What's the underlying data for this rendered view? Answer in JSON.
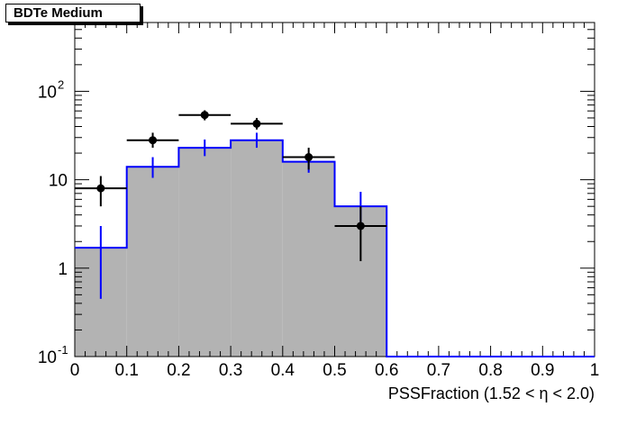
{
  "chart_data": {
    "type": "histogram",
    "title": "BDTe Medium",
    "xlabel": "PSSFraction (1.52 <  η < 2.0)",
    "ylabel": "",
    "yscale": "log",
    "xlim": [
      0,
      1
    ],
    "ylim": [
      0.1,
      600
    ],
    "bin_edges": [
      0,
      0.1,
      0.2,
      0.3,
      0.4,
      0.5,
      0.6,
      0.7,
      0.8,
      0.9,
      1.0
    ],
    "x_ticks": [
      "0",
      "0.1",
      "0.2",
      "0.3",
      "0.4",
      "0.5",
      "0.6",
      "0.7",
      "0.8",
      "0.9",
      "1"
    ],
    "y_ticks": [
      {
        "value": 0.1,
        "base": "10",
        "exp": "-1"
      },
      {
        "value": 1,
        "base": "1",
        "exp": ""
      },
      {
        "value": 10,
        "base": "10",
        "exp": ""
      },
      {
        "value": 100,
        "base": "10",
        "exp": "2"
      }
    ],
    "series": [
      {
        "kind": "filled-histogram",
        "fill_color": "#b3b3b3",
        "line_color": "#0000ff",
        "values": [
          1.7,
          14,
          23,
          28,
          16,
          5,
          0,
          0,
          0,
          0
        ],
        "err_low": [
          0.45,
          10.5,
          18.5,
          23,
          12,
          2.8,
          0,
          0,
          0,
          0
        ],
        "err_high": [
          3,
          18,
          28.5,
          34,
          20,
          7.3,
          0,
          0,
          0,
          0
        ]
      },
      {
        "kind": "data-points",
        "color": "#000000",
        "x": [
          0.05,
          0.15,
          0.25,
          0.35,
          0.45,
          0.55
        ],
        "y": [
          8,
          28,
          54,
          43,
          18,
          3
        ],
        "err_low": [
          5,
          23,
          47,
          37,
          13,
          1.2
        ],
        "err_high": [
          11,
          34,
          61,
          50,
          23,
          5
        ]
      }
    ]
  }
}
